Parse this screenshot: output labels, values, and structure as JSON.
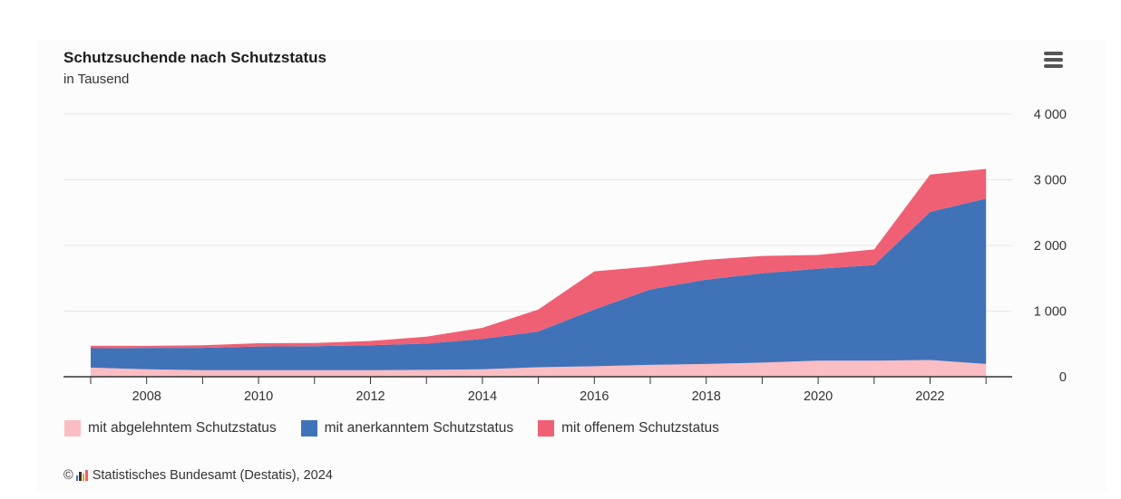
{
  "header": {
    "title": "Schutzsuchende nach Schutzstatus",
    "subtitle": "in Tausend",
    "menu_icon": "hamburger-menu-icon"
  },
  "footer": {
    "copyright": "©",
    "logo_icon": "destatis-logo-icon",
    "source": "Statistisches Bundesamt (Destatis), 2024"
  },
  "colors": {
    "abgelehnt": "#f9bdc3",
    "anerkannt": "#4072b8",
    "offen": "#f06074",
    "grid": "#e6e6e6",
    "axis": "#333333"
  },
  "chart_data": {
    "type": "area",
    "stacked": true,
    "title": "Schutzsuchende nach Schutzstatus",
    "subtitle": "in Tausend",
    "x": [
      2007,
      2008,
      2009,
      2010,
      2011,
      2012,
      2013,
      2014,
      2015,
      2016,
      2017,
      2018,
      2019,
      2020,
      2021,
      2022,
      2023
    ],
    "x_tick_labels": [
      "2008",
      "2010",
      "2012",
      "2014",
      "2016",
      "2018",
      "2020",
      "2022"
    ],
    "y_tick_labels": [
      "0",
      "1 000",
      "2 000",
      "3 000",
      "4 000"
    ],
    "ylim": [
      0,
      4000
    ],
    "y_axis_position": "right",
    "grid": true,
    "legend_position": "bottom-left",
    "series": [
      {
        "name": "mit abgelehntem Schutzstatus",
        "values": [
          140,
          115,
          100,
          100,
          100,
          100,
          105,
          115,
          145,
          160,
          180,
          195,
          215,
          245,
          245,
          255,
          195
        ]
      },
      {
        "name": "mit anerkanntem Schutzstatus",
        "values": [
          295,
          325,
          340,
          360,
          365,
          380,
          400,
          460,
          545,
          865,
          1150,
          1285,
          1360,
          1400,
          1455,
          2255,
          2520
        ]
      },
      {
        "name": "mit offenem Schutzstatus",
        "values": [
          35,
          30,
          40,
          50,
          50,
          65,
          105,
          170,
          335,
          580,
          350,
          300,
          265,
          210,
          240,
          570,
          450
        ]
      }
    ]
  }
}
